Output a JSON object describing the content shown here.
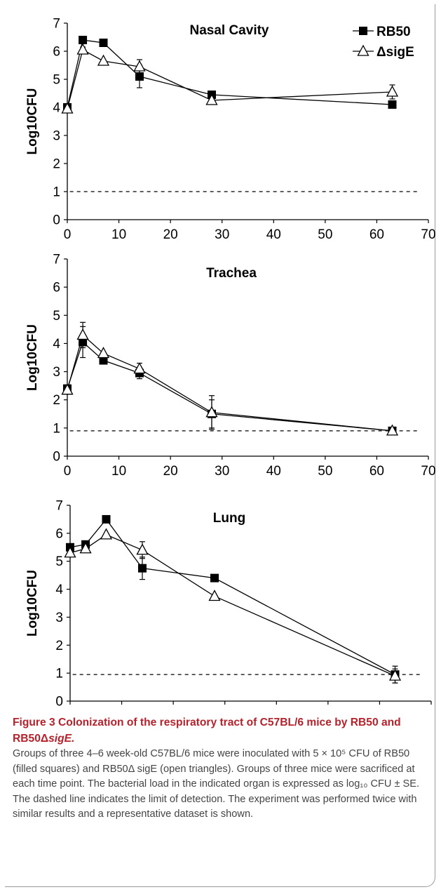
{
  "chart_data": [
    {
      "type": "line",
      "title": "Nasal Cavity",
      "xlabel": "",
      "ylabel": "Log10CFU",
      "xlim": [
        0,
        70
      ],
      "ylim": [
        0,
        7
      ],
      "x_ticks": [
        "0",
        "10",
        "20",
        "30",
        "40",
        "50",
        "60",
        "70"
      ],
      "y_ticks": [
        "0",
        "1",
        "2",
        "3",
        "4",
        "5",
        "6",
        "7"
      ],
      "detection_limit": 1.0,
      "legend": "top-right",
      "series": [
        {
          "name": "RB50",
          "marker": "filled-square",
          "x": [
            0,
            3,
            7,
            14,
            28,
            63
          ],
          "y": [
            4.0,
            6.4,
            6.3,
            5.1,
            4.45,
            4.1
          ],
          "err": [
            0,
            0,
            0,
            0.4,
            0,
            0
          ]
        },
        {
          "name": "ΔsigE",
          "marker": "open-triangle",
          "x": [
            0,
            3,
            7,
            14,
            28,
            63
          ],
          "y": [
            3.95,
            6.05,
            5.65,
            5.45,
            4.25,
            4.55
          ],
          "err": [
            0,
            0.1,
            0,
            0.25,
            0,
            0.25
          ]
        }
      ]
    },
    {
      "type": "line",
      "title": "Trachea",
      "xlabel": "",
      "ylabel": "Log10CFU",
      "xlim": [
        0,
        70
      ],
      "ylim": [
        0,
        7
      ],
      "x_ticks": [
        "0",
        "10",
        "20",
        "30",
        "40",
        "50",
        "60",
        "70"
      ],
      "y_ticks": [
        "0",
        "1",
        "2",
        "3",
        "4",
        "5",
        "6",
        "7"
      ],
      "detection_limit": 0.9,
      "series": [
        {
          "name": "RB50",
          "marker": "filled-square",
          "x": [
            0,
            3,
            7,
            14,
            28,
            63
          ],
          "y": [
            2.4,
            4.05,
            3.4,
            2.95,
            1.5,
            0.9
          ],
          "err": [
            0,
            0.55,
            0,
            0.2,
            0.5,
            0
          ]
        },
        {
          "name": "ΔsigE",
          "marker": "open-triangle",
          "x": [
            0,
            3,
            7,
            14,
            28,
            63
          ],
          "y": [
            2.35,
            4.3,
            3.65,
            3.1,
            1.55,
            0.9
          ],
          "err": [
            0,
            0.45,
            0,
            0.2,
            0.6,
            0.1
          ]
        }
      ]
    },
    {
      "type": "line",
      "title": "Lung",
      "xlabel": "",
      "ylabel": "Log10CFU",
      "xlim": [
        0,
        70
      ],
      "ylim": [
        0,
        7
      ],
      "x_ticks": [
        "0",
        "10",
        "20",
        "30",
        "40",
        "50",
        "60",
        "70"
      ],
      "y_ticks": [
        "0",
        "1",
        "2",
        "3",
        "4",
        "5",
        "6",
        "7"
      ],
      "detection_limit": 0.95,
      "series": [
        {
          "name": "RB50",
          "marker": "filled-square",
          "x": [
            0,
            3,
            7,
            14,
            28,
            63
          ],
          "y": [
            5.5,
            5.6,
            6.5,
            4.75,
            4.4,
            0.95
          ],
          "err": [
            0,
            0,
            0,
            0.4,
            0,
            0.3
          ]
        },
        {
          "name": "ΔsigE",
          "marker": "open-triangle",
          "x": [
            0,
            3,
            7,
            14,
            28,
            63
          ],
          "y": [
            5.3,
            5.45,
            5.95,
            5.4,
            3.75,
            0.9
          ],
          "err": [
            0,
            0,
            0,
            0.3,
            0,
            0.25
          ]
        }
      ]
    }
  ],
  "legend": {
    "rb50": "RB50",
    "sige": "ΔsigE"
  },
  "caption": {
    "title_part1": "Figure 3 Colonization of the respiratory tract of C57BL/6 mice by RB50 and RB50Δ",
    "title_italic": "sigE.",
    "body": "Groups of three 4–6 week-old C57BL/6 mice were inoculated with 5 × 10⁵ CFU of RB50 (filled squares) and RB50Δ sigE (open triangles). Groups of three mice were sacrificed at each time point. The bacterial load in the indicated organ is expressed as log₁₀ CFU ± SE. The dashed line indicates the limit of detection. The experiment was performed twice with similar results and a representative dataset is shown."
  },
  "colors": {
    "line": "#000000",
    "caption_title": "#b5222c",
    "caption_text": "#444444",
    "frame": "#9a9a9a"
  }
}
